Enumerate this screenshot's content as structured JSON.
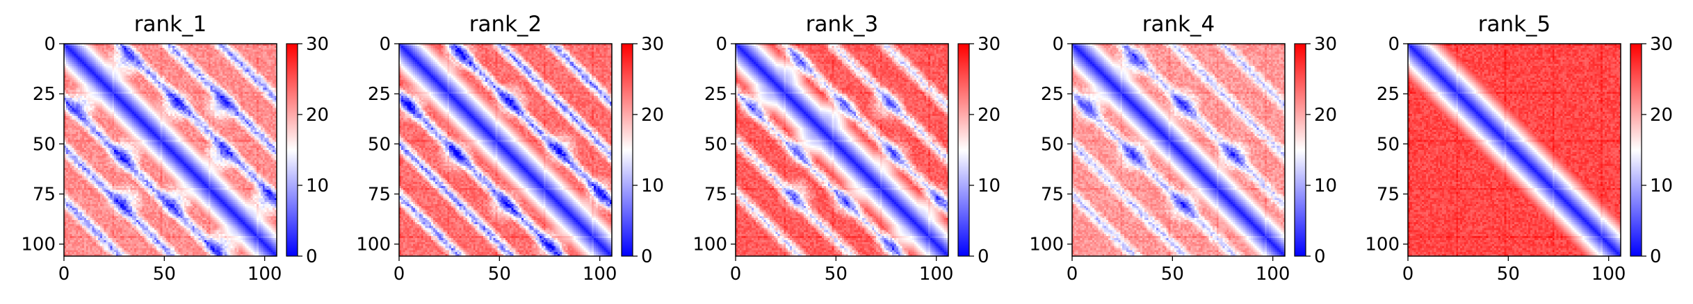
{
  "chart_data": [
    {
      "type": "heatmap",
      "title": "rank_1",
      "xlabel": "",
      "ylabel": "",
      "n": 106,
      "xlim": [
        0,
        106
      ],
      "ylim": [
        106,
        0
      ],
      "x_ticks": [
        0,
        50,
        100
      ],
      "x_tick_labels": [
        "0",
        "50",
        "100"
      ],
      "y_ticks": [
        0,
        25,
        50,
        75,
        100
      ],
      "y_tick_labels": [
        "0",
        "25",
        "50",
        "75",
        "100"
      ],
      "colorbar": {
        "min": 0,
        "max": 30,
        "ticks": [
          0,
          10,
          20,
          30
        ],
        "tick_labels": [
          "0",
          "10",
          "20",
          "30"
        ],
        "colormap": "bwr",
        "colors": [
          "#0000ff",
          "#ffffff",
          "#ff0000"
        ]
      },
      "pattern": {
        "diagonal_offsets": [
          28,
          52,
          78
        ],
        "offdiag_depth": 0.55,
        "helix_contacts": [
          [
            8,
            30
          ],
          [
            30,
            55
          ],
          [
            55,
            78
          ],
          [
            78,
            100
          ],
          [
            30,
            78
          ]
        ],
        "background": 0.72
      }
    },
    {
      "type": "heatmap",
      "title": "rank_2",
      "xlabel": "",
      "ylabel": "",
      "n": 106,
      "xlim": [
        0,
        106
      ],
      "ylim": [
        106,
        0
      ],
      "x_ticks": [
        0,
        50,
        100
      ],
      "x_tick_labels": [
        "0",
        "50",
        "100"
      ],
      "y_ticks": [
        0,
        25,
        50,
        75,
        100
      ],
      "y_tick_labels": [
        "0",
        "25",
        "50",
        "75",
        "100"
      ],
      "colorbar": {
        "min": 0,
        "max": 30,
        "ticks": [
          0,
          10,
          20,
          30
        ],
        "tick_labels": [
          "0",
          "10",
          "20",
          "30"
        ],
        "colormap": "bwr",
        "colors": [
          "#0000ff",
          "#ffffff",
          "#ff0000"
        ]
      },
      "pattern": {
        "diagonal_offsets": [
          26,
          50,
          76
        ],
        "offdiag_depth": 0.65,
        "helix_contacts": [
          [
            5,
            30
          ],
          [
            28,
            55
          ],
          [
            52,
            80
          ],
          [
            75,
            100
          ]
        ],
        "background": 0.78
      }
    },
    {
      "type": "heatmap",
      "title": "rank_3",
      "xlabel": "",
      "ylabel": "",
      "n": 106,
      "xlim": [
        0,
        106
      ],
      "ylim": [
        106,
        0
      ],
      "x_ticks": [
        0,
        50,
        100
      ],
      "x_tick_labels": [
        "0",
        "50",
        "100"
      ],
      "y_ticks": [
        0,
        25,
        50,
        75,
        100
      ],
      "y_tick_labels": [
        "0",
        "25",
        "50",
        "75",
        "100"
      ],
      "colorbar": {
        "min": 0,
        "max": 30,
        "ticks": [
          0,
          10,
          20,
          30
        ],
        "tick_labels": [
          "0",
          "10",
          "20",
          "30"
        ],
        "colormap": "bwr",
        "colors": [
          "#0000ff",
          "#ffffff",
          "#ff0000"
        ]
      },
      "pattern": {
        "diagonal_offsets": [
          24,
          48,
          74
        ],
        "offdiag_depth": 0.5,
        "helix_contacts": [
          [
            10,
            30
          ],
          [
            32,
            52
          ],
          [
            55,
            78
          ],
          [
            78,
            100
          ],
          [
            30,
            75
          ]
        ],
        "background": 0.82
      }
    },
    {
      "type": "heatmap",
      "title": "rank_4",
      "xlabel": "",
      "ylabel": "",
      "n": 106,
      "xlim": [
        0,
        106
      ],
      "ylim": [
        106,
        0
      ],
      "x_ticks": [
        0,
        50,
        100
      ],
      "x_tick_labels": [
        "0",
        "50",
        "100"
      ],
      "y_ticks": [
        0,
        25,
        50,
        75,
        100
      ],
      "y_tick_labels": [
        "0",
        "25",
        "50",
        "75",
        "100"
      ],
      "colorbar": {
        "min": 0,
        "max": 30,
        "ticks": [
          0,
          10,
          20,
          30
        ],
        "tick_labels": [
          "0",
          "10",
          "20",
          "30"
        ],
        "colormap": "bwr",
        "colors": [
          "#0000ff",
          "#ffffff",
          "#ff0000"
        ]
      },
      "pattern": {
        "diagonal_offsets": [
          25,
          50,
          75
        ],
        "offdiag_depth": 0.4,
        "helix_contacts": [
          [
            8,
            30
          ],
          [
            30,
            55
          ],
          [
            55,
            80
          ]
        ],
        "background": 0.7
      }
    },
    {
      "type": "heatmap",
      "title": "rank_5",
      "xlabel": "",
      "ylabel": "",
      "n": 106,
      "xlim": [
        0,
        106
      ],
      "ylim": [
        106,
        0
      ],
      "x_ticks": [
        0,
        50,
        100
      ],
      "x_tick_labels": [
        "0",
        "50",
        "100"
      ],
      "y_ticks": [
        0,
        25,
        50,
        75,
        100
      ],
      "y_tick_labels": [
        "0",
        "25",
        "50",
        "75",
        "100"
      ],
      "colorbar": {
        "min": 0,
        "max": 30,
        "ticks": [
          0,
          10,
          20,
          30
        ],
        "tick_labels": [
          "0",
          "10",
          "20",
          "30"
        ],
        "colormap": "bwr",
        "colors": [
          "#0000ff",
          "#ffffff",
          "#ff0000"
        ]
      },
      "pattern": {
        "diagonal_offsets": [],
        "offdiag_depth": 0.15,
        "helix_contacts": [],
        "background": 0.86
      }
    }
  ]
}
